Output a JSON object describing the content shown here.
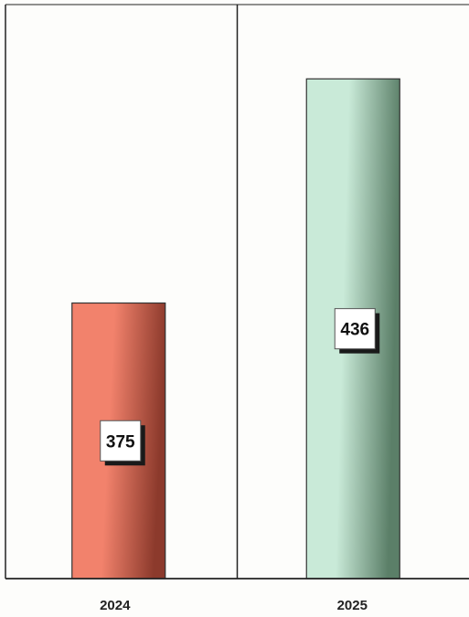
{
  "chart_data": {
    "type": "bar",
    "title": "",
    "xlabel": "",
    "ylabel": "",
    "categories": [
      "2024",
      "2025"
    ],
    "values": [
      375,
      436
    ],
    "ylim": [
      300,
      450
    ],
    "grid": false,
    "legend": "none",
    "colors": {
      "2024": "#f2826c",
      "2025": "#c9ead8"
    },
    "color_shadows": {
      "2024": "#8c3a2c",
      "2025": "#5b7f68"
    },
    "panel_background": "#fdfdfb",
    "frame_color": "#222222",
    "label_box_fill": "#ffffff",
    "label_box_shadow": "#1a1a1a"
  }
}
